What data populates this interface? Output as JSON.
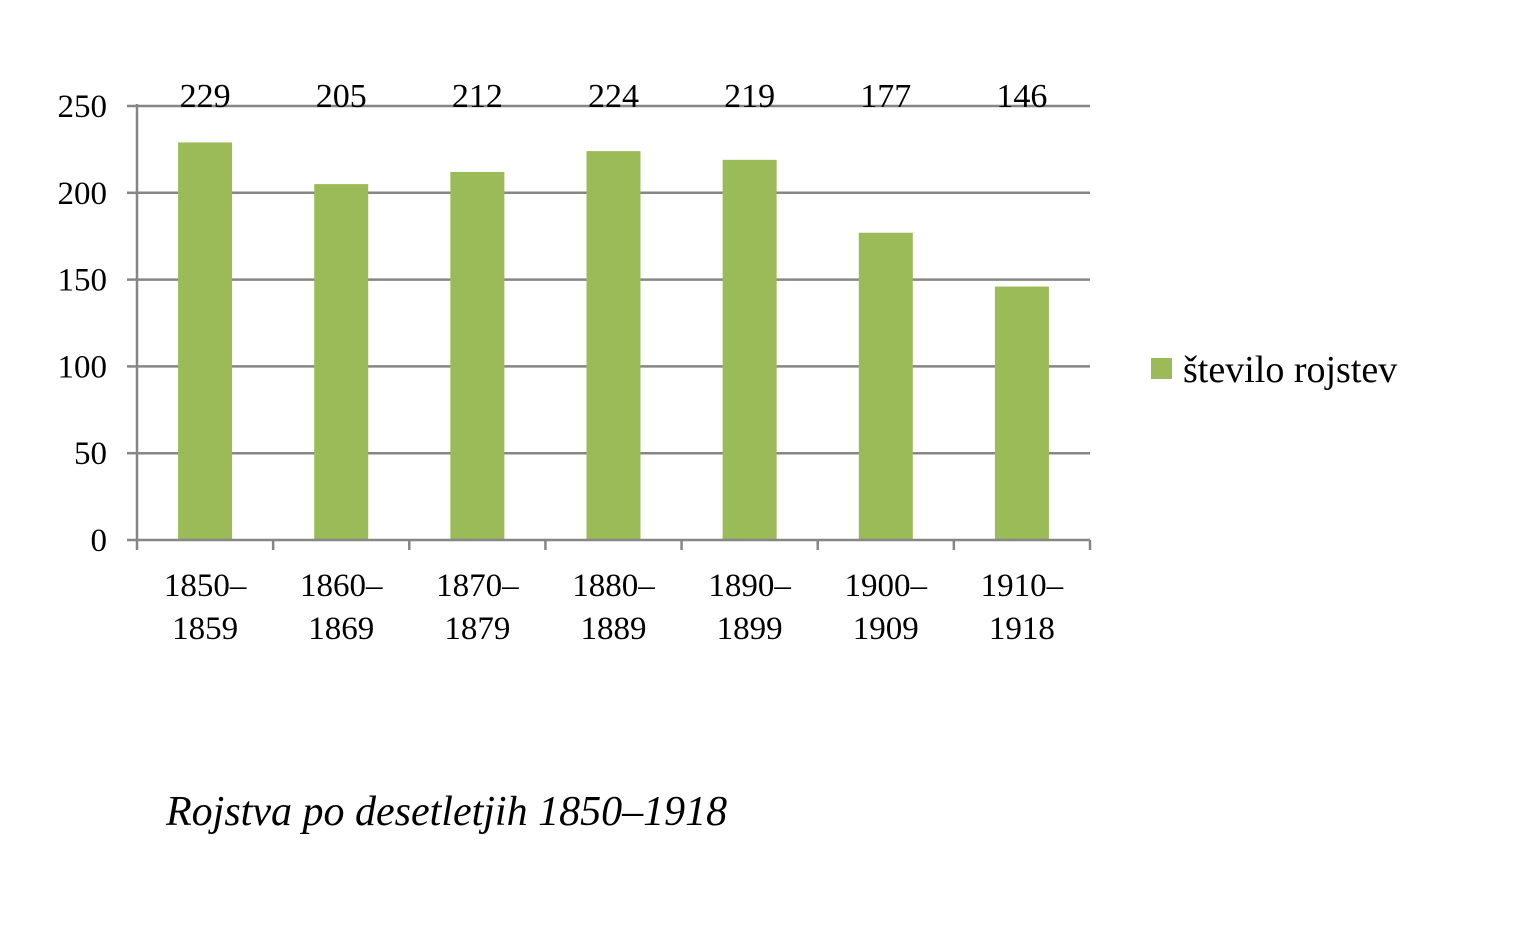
{
  "caption": "Rojstva po desetletjih 1850–1918",
  "chart_data": {
    "type": "bar",
    "categories": [
      [
        "1850–",
        "1859"
      ],
      [
        "1860–",
        "1869"
      ],
      [
        "1870–",
        "1879"
      ],
      [
        "1880–",
        "1889"
      ],
      [
        "1890–",
        "1899"
      ],
      [
        "1900–",
        "1909"
      ],
      [
        "1910–",
        "1918"
      ]
    ],
    "series": [
      {
        "name": "število rojstev",
        "values": [
          229,
          205,
          212,
          224,
          219,
          177,
          146
        ],
        "color": "#9bbb59"
      }
    ],
    "ylim": [
      0,
      250
    ],
    "yticks": [
      0,
      50,
      100,
      150,
      200,
      250
    ],
    "grid": true,
    "legend_position": "right",
    "data_labels": true,
    "data_label_position": "top"
  }
}
